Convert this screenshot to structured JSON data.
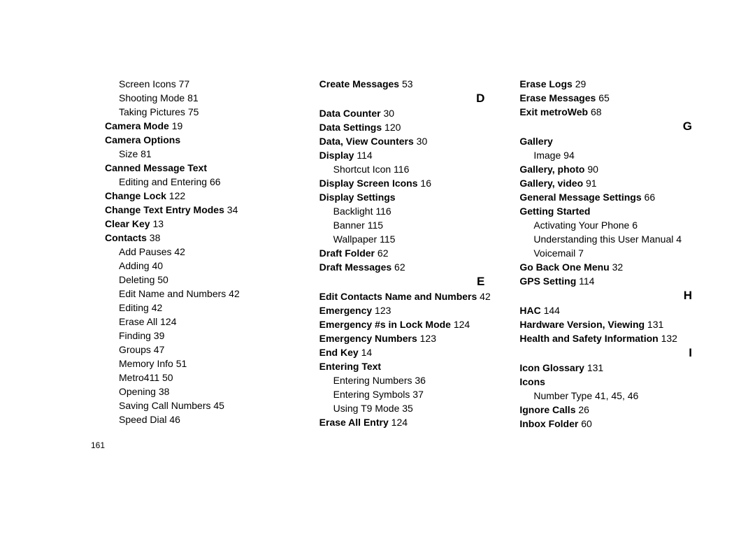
{
  "page_number": "161",
  "columns": [
    {
      "entries": [
        {
          "kind": "sub",
          "text": "Screen Icons",
          "page": "77"
        },
        {
          "kind": "sub",
          "text": "Shooting Mode",
          "page": "81"
        },
        {
          "kind": "sub",
          "text": "Taking Pictures",
          "page": "75"
        },
        {
          "kind": "main",
          "text": "Camera Mode",
          "page": "19"
        },
        {
          "kind": "main",
          "text": "Camera Options",
          "page": ""
        },
        {
          "kind": "sub",
          "text": "Size",
          "page": "81"
        },
        {
          "kind": "main",
          "text": "Canned Message Text",
          "page": ""
        },
        {
          "kind": "sub",
          "text": "Editing and Entering",
          "page": "66"
        },
        {
          "kind": "main",
          "text": "Change Lock",
          "page": "122"
        },
        {
          "kind": "main",
          "text": "Change Text Entry Modes",
          "page": "34"
        },
        {
          "kind": "main",
          "text": "Clear Key",
          "page": "13"
        },
        {
          "kind": "main",
          "text": "Contacts",
          "page": "38"
        },
        {
          "kind": "sub",
          "text": "Add Pauses",
          "page": "42"
        },
        {
          "kind": "sub",
          "text": "Adding",
          "page": "40"
        },
        {
          "kind": "sub",
          "text": "Deleting",
          "page": "50"
        },
        {
          "kind": "sub",
          "text": "Edit Name and Numbers",
          "page": "42"
        },
        {
          "kind": "sub",
          "text": "Editing",
          "page": "42"
        },
        {
          "kind": "sub",
          "text": "Erase All",
          "page": "124"
        },
        {
          "kind": "sub",
          "text": "Finding",
          "page": "39"
        },
        {
          "kind": "sub",
          "text": "Groups",
          "page": "47"
        },
        {
          "kind": "sub",
          "text": "Memory Info",
          "page": "51"
        },
        {
          "kind": "sub",
          "text": "Metro411",
          "page": "50"
        },
        {
          "kind": "sub",
          "text": "Opening",
          "page": "38"
        },
        {
          "kind": "sub",
          "text": "Saving Call Numbers",
          "page": "45"
        },
        {
          "kind": "sub",
          "text": "Speed Dial",
          "page": "46"
        }
      ]
    },
    {
      "entries": [
        {
          "kind": "main",
          "text": "Create Messages",
          "page": "53"
        },
        {
          "kind": "letter",
          "text": "D"
        },
        {
          "kind": "main",
          "text": "Data Counter",
          "page": "30"
        },
        {
          "kind": "main",
          "text": "Data Settings",
          "page": "120"
        },
        {
          "kind": "main",
          "text": "Data, View Counters",
          "page": "30"
        },
        {
          "kind": "main",
          "text": "Display",
          "page": "114"
        },
        {
          "kind": "sub",
          "text": "Shortcut Icon",
          "page": "116"
        },
        {
          "kind": "main",
          "text": "Display Screen Icons",
          "page": "16"
        },
        {
          "kind": "main",
          "text": "Display Settings",
          "page": ""
        },
        {
          "kind": "sub",
          "text": "Backlight",
          "page": "116"
        },
        {
          "kind": "sub",
          "text": "Banner",
          "page": "115"
        },
        {
          "kind": "sub",
          "text": "Wallpaper",
          "page": "115"
        },
        {
          "kind": "main",
          "text": "Draft Folder",
          "page": "62"
        },
        {
          "kind": "main",
          "text": "Draft Messages",
          "page": "62"
        },
        {
          "kind": "letter",
          "text": "E"
        },
        {
          "kind": "main",
          "text": "Edit Contacts Name and Numbers",
          "page": "42"
        },
        {
          "kind": "main",
          "text": "Emergency",
          "page": "123"
        },
        {
          "kind": "main",
          "text": "Emergency #s in Lock Mode",
          "page": "124"
        },
        {
          "kind": "main",
          "text": "Emergency Numbers",
          "page": "123"
        },
        {
          "kind": "main",
          "text": "End Key",
          "page": "14"
        },
        {
          "kind": "main",
          "text": "Entering Text",
          "page": ""
        },
        {
          "kind": "sub",
          "text": "Entering Numbers",
          "page": "36"
        },
        {
          "kind": "sub",
          "text": "Entering Symbols",
          "page": "37"
        },
        {
          "kind": "sub",
          "text": "Using T9 Mode",
          "page": "35"
        },
        {
          "kind": "main",
          "text": "Erase All Entry",
          "page": "124"
        }
      ]
    },
    {
      "entries": [
        {
          "kind": "main",
          "text": "Erase Logs",
          "page": "29"
        },
        {
          "kind": "main",
          "text": "Erase Messages",
          "page": "65"
        },
        {
          "kind": "main",
          "text": "Exit metroWeb",
          "page": "68"
        },
        {
          "kind": "letter",
          "text": "G"
        },
        {
          "kind": "main",
          "text": "Gallery",
          "page": ""
        },
        {
          "kind": "sub",
          "text": "Image",
          "page": "94"
        },
        {
          "kind": "main",
          "text": "Gallery, photo",
          "page": "90"
        },
        {
          "kind": "main",
          "text": "Gallery, video",
          "page": "91"
        },
        {
          "kind": "main",
          "text": "General Message Settings",
          "page": "66"
        },
        {
          "kind": "main",
          "text": "Getting Started",
          "page": ""
        },
        {
          "kind": "sub",
          "text": "Activating Your Phone",
          "page": "6"
        },
        {
          "kind": "sub",
          "text": "Understanding this User Manual",
          "page": "4"
        },
        {
          "kind": "sub",
          "text": "Voicemail",
          "page": "7"
        },
        {
          "kind": "main",
          "text": "Go Back One Menu",
          "page": "32"
        },
        {
          "kind": "main",
          "text": "GPS Setting",
          "page": "114"
        },
        {
          "kind": "letter",
          "text": "H"
        },
        {
          "kind": "main",
          "text": "HAC",
          "page": "144"
        },
        {
          "kind": "main",
          "text": "Hardware Version, Viewing",
          "page": "131"
        },
        {
          "kind": "main",
          "text": "Health and Safety Information",
          "page": "132"
        },
        {
          "kind": "letter",
          "text": "I"
        },
        {
          "kind": "main",
          "text": "Icon Glossary",
          "page": "131"
        },
        {
          "kind": "main",
          "text": "Icons",
          "page": ""
        },
        {
          "kind": "sub",
          "text": "Number Type",
          "page": "41, 45, 46"
        },
        {
          "kind": "main",
          "text": "Ignore Calls",
          "page": "26"
        },
        {
          "kind": "main",
          "text": "Inbox Folder",
          "page": "60"
        }
      ]
    }
  ]
}
